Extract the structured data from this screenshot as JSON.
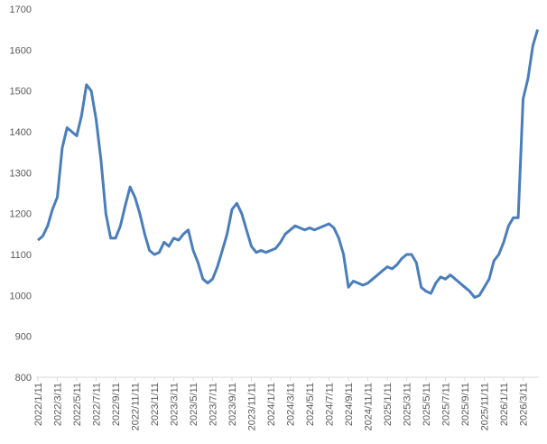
{
  "chart_data": {
    "type": "line",
    "categories": [
      "2022/1/11",
      null,
      null,
      null,
      "2022/3/11",
      null,
      null,
      null,
      "2022/5/11",
      null,
      null,
      null,
      "2022/7/11",
      null,
      null,
      null,
      "2022/9/11",
      null,
      null,
      null,
      "2022/11/11",
      null,
      null,
      null,
      "2023/1/11",
      null,
      null,
      null,
      "2023/3/11",
      null,
      null,
      null,
      "2023/5/11",
      null,
      null,
      null,
      "2023/7/11",
      null,
      null,
      null,
      "2023/9/11",
      null,
      null,
      null,
      "2023/11/11",
      null,
      null,
      null,
      "2024/1/11",
      null,
      null,
      null,
      "2024/3/11",
      null,
      null,
      null,
      "2024/5/11",
      null,
      null,
      null,
      "2024/7/11",
      null,
      null,
      null,
      "2024/9/11",
      null,
      null,
      null,
      "2024/11/11",
      null,
      null,
      null,
      "2025/1/11",
      null,
      null,
      null,
      "2025/3/11",
      null,
      null,
      null,
      "2025/5/11",
      null,
      null,
      null,
      "2025/7/11",
      null,
      null,
      null,
      "2025/9/11",
      null,
      null,
      null,
      "2025/11/11",
      null,
      null,
      null,
      "2026/1/11",
      null,
      null,
      null,
      "2026/3/11",
      null,
      null,
      null
    ],
    "values": [
      1135,
      1145,
      1170,
      1210,
      1240,
      1360,
      1410,
      1400,
      1390,
      1440,
      1515,
      1500,
      1430,
      1330,
      1200,
      1140,
      1140,
      1170,
      1220,
      1265,
      1240,
      1200,
      1150,
      1110,
      1100,
      1105,
      1130,
      1120,
      1140,
      1135,
      1150,
      1160,
      1110,
      1080,
      1040,
      1030,
      1040,
      1070,
      1110,
      1150,
      1210,
      1225,
      1200,
      1160,
      1120,
      1105,
      1110,
      1105,
      1110,
      1115,
      1130,
      1150,
      1160,
      1170,
      1165,
      1160,
      1165,
      1160,
      1165,
      1170,
      1175,
      1165,
      1140,
      1100,
      1020,
      1035,
      1030,
      1025,
      1030,
      1040,
      1050,
      1060,
      1070,
      1065,
      1075,
      1090,
      1100,
      1100,
      1080,
      1020,
      1010,
      1005,
      1030,
      1045,
      1040,
      1050,
      1040,
      1030,
      1020,
      1010,
      995,
      1000,
      1020,
      1040,
      1085,
      1100,
      1130,
      1170,
      1190,
      1190,
      1480,
      1530,
      1610,
      1650
    ],
    "color": "#4a7ebb",
    "ylim": [
      800,
      1700
    ],
    "yticks": [
      800,
      900,
      1000,
      1100,
      1200,
      1300,
      1400,
      1500,
      1600,
      1700
    ],
    "grid": false
  }
}
